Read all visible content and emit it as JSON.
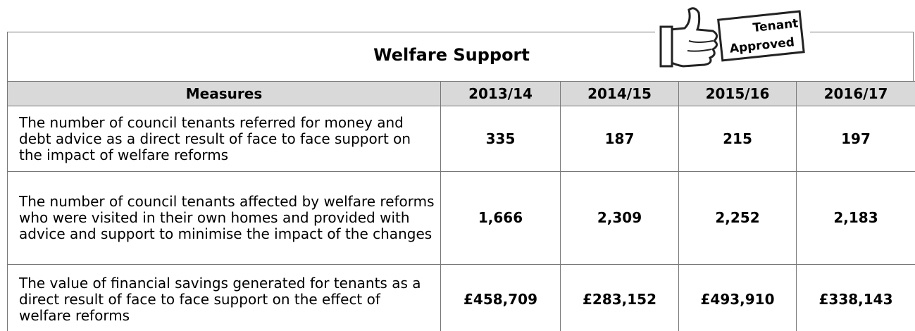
{
  "title": "Welfare Support",
  "badge": {
    "line1": "Tenant",
    "line2": "Approved"
  },
  "table": {
    "header": [
      "Measures",
      "2013/14",
      "2014/15",
      "2015/16",
      "2016/17"
    ],
    "rows": [
      [
        "The number of council tenants referred for money and debt advice as a direct result of face to face support on the impact of welfare reforms",
        "335",
        "187",
        "215",
        "197"
      ],
      [
        "The number of council tenants affected by welfare reforms who were visited in their own homes and provided with advice and support to minimise the impact of the changes",
        "1,666",
        "2,309",
        "2,252",
        "2,183"
      ],
      [
        "The value of financial savings generated for tenants as a direct result of face to face support on the effect of welfare reforms",
        "£458,709",
        "£283,152",
        "£493,910",
        "£338,143"
      ]
    ]
  }
}
